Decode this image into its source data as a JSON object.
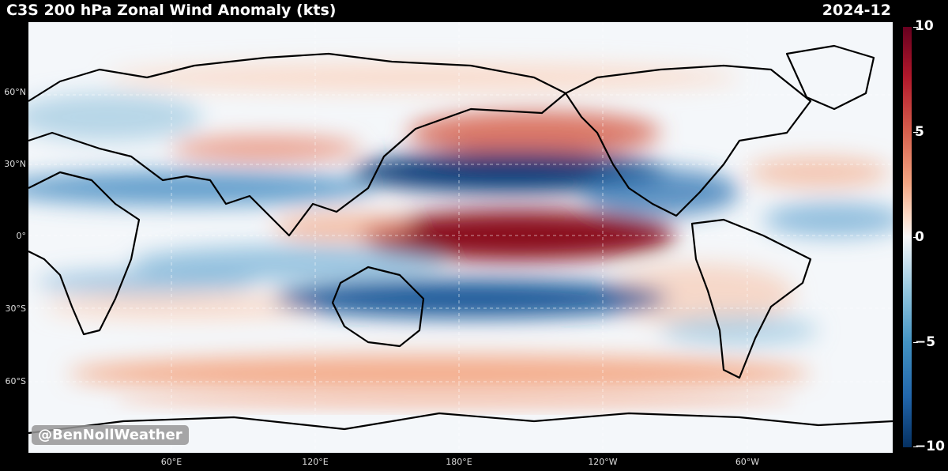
{
  "header": {
    "title": "C3S 200 hPa Zonal Wind Anomaly (kts)",
    "date": "2024-12"
  },
  "map": {
    "lat_labels": [
      "60°N",
      "30°N",
      "0°",
      "30°S",
      "60°S"
    ],
    "lon_labels": [
      "60°E",
      "120°E",
      "180°E",
      "120°W",
      "60°W"
    ],
    "colors": {
      "positive": "#b2182b",
      "negative": "#2166ac",
      "neutral": "#f7f7f7"
    }
  },
  "colorbar": {
    "labels": [
      "10",
      "5",
      "0",
      "−5",
      "−10"
    ],
    "min": -10,
    "max": 10
  },
  "watermark": "@BenNollWeather"
}
